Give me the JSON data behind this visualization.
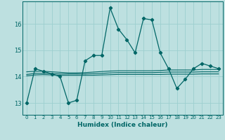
{
  "xlabel": "Humidex (Indice chaleur)",
  "background_color": "#bde0e0",
  "grid_color": "#9ccfcf",
  "line_color": "#006666",
  "xlim": [
    -0.5,
    23.5
  ],
  "ylim": [
    12.55,
    16.85
  ],
  "yticks": [
    13,
    14,
    15,
    16
  ],
  "xticks": [
    0,
    1,
    2,
    3,
    4,
    5,
    6,
    7,
    8,
    9,
    10,
    11,
    12,
    13,
    14,
    15,
    16,
    17,
    18,
    19,
    20,
    21,
    22,
    23
  ],
  "main_series": [
    13.0,
    14.3,
    14.2,
    14.1,
    14.0,
    13.0,
    13.1,
    14.6,
    14.8,
    14.8,
    16.6,
    15.8,
    15.4,
    14.9,
    16.2,
    16.15,
    14.9,
    14.3,
    13.55,
    13.9,
    14.3,
    14.5,
    14.4,
    14.3
  ],
  "smooth_series1": [
    14.18,
    14.2,
    14.2,
    14.18,
    14.16,
    14.14,
    14.14,
    14.15,
    14.17,
    14.19,
    14.21,
    14.22,
    14.22,
    14.22,
    14.22,
    14.22,
    14.23,
    14.25,
    14.25,
    14.25,
    14.25,
    14.27,
    14.27,
    14.27
  ],
  "smooth_series2": [
    14.08,
    14.12,
    14.12,
    14.11,
    14.1,
    14.1,
    14.1,
    14.1,
    14.11,
    14.12,
    14.14,
    14.15,
    14.15,
    14.15,
    14.15,
    14.15,
    14.16,
    14.17,
    14.17,
    14.17,
    14.17,
    14.18,
    14.18,
    14.18
  ],
  "smooth_series3": [
    14.03,
    14.06,
    14.07,
    14.06,
    14.05,
    14.05,
    14.05,
    14.05,
    14.05,
    14.06,
    14.07,
    14.08,
    14.08,
    14.08,
    14.08,
    14.08,
    14.08,
    14.09,
    14.09,
    14.09,
    14.09,
    14.1,
    14.1,
    14.1
  ]
}
